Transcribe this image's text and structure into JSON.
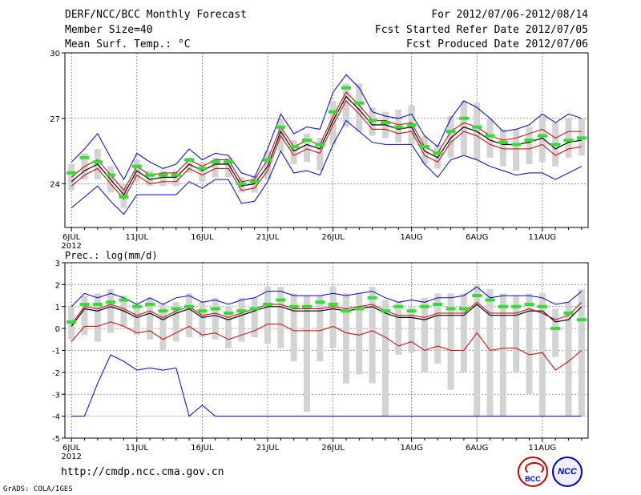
{
  "header": {
    "title": "DERF/NCC/BCC Monthly Forecast",
    "member_size": "Member Size=40",
    "variable": "Mean Surf. Temp.: °C",
    "period": "For 2012/07/06-2012/08/14",
    "fcst_started": "Fcst Started Refer Date 2012/07/05",
    "fcst_produced": "Fcst Produced Date 2012/07/06"
  },
  "footer": {
    "url": "http://cmdp.ncc.cma.gov.cn",
    "grads": "GrADS: COLA/IGES",
    "logo_left_text": "BCC",
    "logo_right_text": "NCC"
  },
  "colors": {
    "mean": "#000000",
    "spread": "#cc0000",
    "envelope": "#0000cc",
    "box": "#d3d3d3",
    "obs": "#33dd33"
  },
  "chart_data": [
    {
      "type": "line",
      "title": "Mean Surf. Temp.: °C",
      "x_tick_labels": [
        "6JUL",
        "11JUL",
        "16JUL",
        "21JUL",
        "26JUL",
        "1AUG",
        "6AUG",
        "11AUG"
      ],
      "x_tick_days": [
        0,
        5,
        10,
        15,
        20,
        26,
        31,
        36
      ],
      "year_label": "2012",
      "ylim": [
        22,
        30
      ],
      "yticks": [
        24,
        27,
        30
      ],
      "days": 40,
      "series": [
        {
          "name": "mean",
          "values": [
            24.1,
            24.6,
            24.9,
            24.2,
            23.5,
            24.6,
            24.2,
            24.3,
            24.3,
            24.9,
            24.6,
            24.9,
            24.9,
            23.9,
            24.0,
            24.8,
            26.4,
            25.5,
            25.8,
            25.6,
            26.9,
            28.0,
            27.4,
            26.7,
            26.7,
            26.5,
            26.6,
            25.5,
            25.2,
            26.1,
            26.6,
            26.4,
            26.0,
            25.8,
            25.8,
            25.9,
            26.1,
            25.6,
            25.9,
            26.0
          ]
        },
        {
          "name": "upper",
          "values": [
            24.3,
            24.8,
            25.1,
            24.4,
            23.7,
            24.8,
            24.4,
            24.5,
            24.5,
            25.1,
            24.8,
            25.1,
            25.1,
            24.1,
            24.2,
            25.1,
            26.6,
            25.7,
            26.0,
            25.8,
            27.1,
            28.2,
            27.6,
            26.9,
            26.9,
            26.7,
            26.8,
            25.7,
            25.4,
            26.4,
            26.8,
            26.6,
            26.2,
            26.0,
            26.1,
            26.3,
            26.5,
            26.1,
            26.4,
            26.4
          ]
        },
        {
          "name": "lower",
          "values": [
            23.9,
            24.4,
            24.7,
            24.0,
            23.3,
            24.4,
            24.0,
            24.1,
            24.1,
            24.7,
            24.4,
            24.7,
            24.7,
            23.7,
            23.8,
            24.6,
            26.2,
            25.3,
            25.6,
            25.4,
            26.7,
            27.8,
            27.2,
            26.5,
            26.5,
            26.3,
            26.4,
            25.3,
            25.0,
            25.9,
            26.4,
            26.2,
            25.8,
            25.6,
            25.6,
            25.6,
            25.8,
            25.3,
            25.6,
            25.7
          ]
        },
        {
          "name": "max",
          "values": [
            25.0,
            25.6,
            26.3,
            25.2,
            24.2,
            25.4,
            25.0,
            24.7,
            24.9,
            25.6,
            25.1,
            25.4,
            25.3,
            24.5,
            24.3,
            25.6,
            27.2,
            26.3,
            26.6,
            26.5,
            28.2,
            29.0,
            28.4,
            27.3,
            27.1,
            27.0,
            27.2,
            26.2,
            25.7,
            27.0,
            27.8,
            27.5,
            27.0,
            26.4,
            26.5,
            26.7,
            27.2,
            26.8,
            27.2,
            27.0
          ]
        },
        {
          "name": "min",
          "values": [
            22.9,
            23.4,
            23.9,
            23.2,
            22.6,
            23.5,
            23.5,
            23.5,
            23.5,
            24.1,
            23.8,
            24.2,
            24.2,
            23.1,
            23.2,
            24.1,
            25.5,
            24.5,
            24.6,
            24.4,
            25.8,
            26.9,
            26.4,
            25.9,
            25.8,
            25.8,
            25.8,
            24.9,
            24.3,
            25.1,
            25.3,
            25.1,
            24.8,
            24.6,
            24.4,
            24.5,
            24.5,
            24.2,
            24.5,
            24.8
          ]
        }
      ],
      "boxes": [
        {
          "low": 23.7,
          "high": 24.9
        },
        {
          "low": 24.2,
          "high": 25.4
        },
        {
          "low": 24.2,
          "high": 25.6
        },
        {
          "low": 23.6,
          "high": 24.8
        },
        {
          "low": 22.9,
          "high": 24.0
        },
        {
          "low": 24.1,
          "high": 25.1
        },
        {
          "low": 23.9,
          "high": 24.6
        },
        {
          "low": 23.9,
          "high": 24.6
        },
        {
          "low": 23.9,
          "high": 24.6
        },
        {
          "low": 24.5,
          "high": 25.2
        },
        {
          "low": 24.1,
          "high": 25.0
        },
        {
          "low": 24.3,
          "high": 25.2
        },
        {
          "low": 24.3,
          "high": 25.2
        },
        {
          "low": 23.6,
          "high": 24.3
        },
        {
          "low": 23.6,
          "high": 24.4
        },
        {
          "low": 24.2,
          "high": 25.5
        },
        {
          "low": 25.5,
          "high": 27.0
        },
        {
          "low": 24.9,
          "high": 26.0
        },
        {
          "low": 25.0,
          "high": 26.3
        },
        {
          "low": 24.6,
          "high": 26.1
        },
        {
          "low": 25.8,
          "high": 27.8
        },
        {
          "low": 26.6,
          "high": 28.6
        },
        {
          "low": 26.4,
          "high": 28.6
        },
        {
          "low": 26.2,
          "high": 27.5
        },
        {
          "low": 26.1,
          "high": 27.3
        },
        {
          "low": 25.9,
          "high": 27.4
        },
        {
          "low": 25.8,
          "high": 27.6
        },
        {
          "low": 24.9,
          "high": 26.2
        },
        {
          "low": 24.7,
          "high": 25.8
        },
        {
          "low": 25.2,
          "high": 27.1
        },
        {
          "low": 25.3,
          "high": 27.8
        },
        {
          "low": 25.1,
          "high": 27.7
        },
        {
          "low": 25.2,
          "high": 27.0
        },
        {
          "low": 24.8,
          "high": 26.5
        },
        {
          "low": 24.6,
          "high": 26.5
        },
        {
          "low": 24.9,
          "high": 26.6
        },
        {
          "low": 25.0,
          "high": 27.1
        },
        {
          "low": 24.8,
          "high": 26.8
        },
        {
          "low": 25.2,
          "high": 27.0
        },
        {
          "low": 25.3,
          "high": 27.0
        }
      ],
      "observed": [
        24.5,
        25.2,
        25.0,
        24.4,
        23.4,
        24.8,
        24.4,
        24.4,
        24.4,
        25.1,
        24.7,
        25.0,
        25.0,
        24.0,
        24.1,
        25.1,
        26.6,
        25.7,
        26.0,
        25.8,
        27.3,
        28.4,
        27.7,
        26.9,
        26.8,
        26.6,
        26.7,
        25.7,
        25.4,
        26.4,
        27.0,
        26.6,
        26.2,
        25.9,
        25.8,
        26.0,
        26.2,
        25.8,
        26.0,
        26.1
      ]
    },
    {
      "type": "line",
      "title": "Prec.: log(mm/d)",
      "x_tick_labels": [
        "6JUL",
        "11JUL",
        "16JUL",
        "21JUL",
        "26JUL",
        "1AUG",
        "6AUG",
        "11AUG"
      ],
      "x_tick_days": [
        0,
        5,
        10,
        15,
        20,
        26,
        31,
        36
      ],
      "year_label": "2012",
      "ylim": [
        -5,
        3
      ],
      "yticks": [
        -5,
        -4,
        -3,
        -2,
        -1,
        0,
        1,
        2,
        3
      ],
      "days": 40,
      "series": [
        {
          "name": "mean",
          "values": [
            0.1,
            0.9,
            0.8,
            1.0,
            0.8,
            0.5,
            0.7,
            0.4,
            0.7,
            0.9,
            0.5,
            0.6,
            0.4,
            0.6,
            0.8,
            1.0,
            1.0,
            0.8,
            0.8,
            0.8,
            0.9,
            0.8,
            0.9,
            1.0,
            0.7,
            0.5,
            0.5,
            0.4,
            0.6,
            0.6,
            0.6,
            1.1,
            0.6,
            0.6,
            0.6,
            0.8,
            0.8,
            0.3,
            0.4,
            1.0
          ]
        },
        {
          "name": "upper",
          "values": [
            0.2,
            1.0,
            0.9,
            1.1,
            0.9,
            0.6,
            0.8,
            0.5,
            0.8,
            1.0,
            0.6,
            0.7,
            0.5,
            0.7,
            0.9,
            1.1,
            1.1,
            0.9,
            0.9,
            0.9,
            1.0,
            0.9,
            1.0,
            1.1,
            0.8,
            0.6,
            0.6,
            0.5,
            0.7,
            0.7,
            0.7,
            1.2,
            0.7,
            0.7,
            0.7,
            0.9,
            0.7,
            0.4,
            0.6,
            1.2
          ]
        },
        {
          "name": "lower",
          "values": [
            -0.6,
            0.1,
            0.1,
            0.3,
            0.1,
            -0.2,
            -0.1,
            -0.5,
            -0.2,
            0.1,
            -0.3,
            -0.2,
            -0.5,
            -0.3,
            -0.1,
            0.2,
            0.2,
            -0.1,
            -0.1,
            -0.1,
            0.1,
            -0.2,
            -0.3,
            -0.1,
            -0.4,
            -0.8,
            -0.6,
            -1.0,
            -0.8,
            -1.0,
            -1.0,
            -0.2,
            -1.0,
            -0.9,
            -0.9,
            -1.2,
            -1.1,
            -1.9,
            -1.5,
            -1.0
          ]
        },
        {
          "name": "max",
          "values": [
            1.0,
            1.6,
            1.4,
            1.6,
            1.4,
            1.1,
            1.4,
            1.1,
            1.4,
            1.5,
            1.2,
            1.3,
            1.1,
            1.3,
            1.4,
            1.7,
            1.7,
            1.5,
            1.5,
            1.5,
            1.6,
            1.5,
            1.6,
            1.7,
            1.4,
            1.2,
            1.3,
            1.2,
            1.4,
            1.4,
            1.5,
            1.9,
            1.4,
            1.5,
            1.5,
            1.5,
            1.4,
            1.1,
            1.2,
            1.7
          ]
        },
        {
          "name": "min",
          "values": [
            -4.0,
            -4.0,
            -2.5,
            -1.2,
            -1.5,
            -1.9,
            -1.8,
            -1.9,
            -1.8,
            -4.0,
            -3.5,
            -4.0,
            -4.0,
            -4.0,
            -4.0,
            -4.0,
            -4.0,
            -4.0,
            -4.0,
            -4.0,
            -4.0,
            -4.0,
            -4.0,
            -4.0,
            -4.0,
            -4.0,
            -4.0,
            -4.0,
            -4.0,
            -4.0,
            -4.0,
            -4.0,
            -4.0,
            -4.0,
            -4.0,
            -4.0,
            -4.0,
            -4.0,
            -4.0,
            -4.0
          ]
        }
      ],
      "boxes": [
        {
          "low": -0.5,
          "high": 1.0
        },
        {
          "low": -0.3,
          "high": 1.5
        },
        {
          "low": -0.6,
          "high": 1.6
        },
        {
          "low": -0.2,
          "high": 1.8
        },
        {
          "low": 0.1,
          "high": 1.5
        },
        {
          "low": -0.3,
          "high": 1.1
        },
        {
          "low": -0.5,
          "high": 1.4
        },
        {
          "low": -1.0,
          "high": 1.1
        },
        {
          "low": -0.6,
          "high": 1.2
        },
        {
          "low": -0.4,
          "high": 1.6
        },
        {
          "low": -0.4,
          "high": 1.2
        },
        {
          "low": -0.5,
          "high": 1.4
        },
        {
          "low": -0.9,
          "high": 1.0
        },
        {
          "low": -0.6,
          "high": 1.4
        },
        {
          "low": -0.4,
          "high": 1.4
        },
        {
          "low": -0.7,
          "high": 1.9
        },
        {
          "low": -0.9,
          "high": 1.9
        },
        {
          "low": -1.5,
          "high": 1.6
        },
        {
          "low": -3.8,
          "high": 1.5
        },
        {
          "low": -1.5,
          "high": 1.5
        },
        {
          "low": -0.9,
          "high": 1.9
        },
        {
          "low": -2.5,
          "high": 1.6
        },
        {
          "low": -2.1,
          "high": 1.6
        },
        {
          "low": -2.5,
          "high": 1.9
        },
        {
          "low": -4.0,
          "high": 1.3
        },
        {
          "low": -1.2,
          "high": 1.2
        },
        {
          "low": -1.1,
          "high": 1.0
        },
        {
          "low": -2.0,
          "high": 1.4
        },
        {
          "low": -1.6,
          "high": 1.6
        },
        {
          "low": -2.8,
          "high": 1.6
        },
        {
          "low": -2.0,
          "high": 1.6
        },
        {
          "low": -4.0,
          "high": 2.0
        },
        {
          "low": -4.0,
          "high": 1.8
        },
        {
          "low": -4.0,
          "high": 1.6
        },
        {
          "low": -2.0,
          "high": 1.5
        },
        {
          "low": -3.0,
          "high": 1.6
        },
        {
          "low": -4.0,
          "high": 1.6
        },
        {
          "low": -1.3,
          "high": 0.9
        },
        {
          "low": -4.0,
          "high": 1.2
        },
        {
          "low": -4.0,
          "high": 1.8
        }
      ],
      "observed": [
        0.3,
        1.1,
        1.1,
        1.2,
        1.3,
        1.0,
        1.1,
        0.8,
        0.9,
        1.0,
        0.8,
        0.9,
        0.7,
        0.8,
        0.9,
        1.1,
        1.3,
        1.0,
        1.0,
        1.2,
        1.1,
        0.8,
        0.9,
        1.4,
        0.8,
        1.0,
        0.8,
        1.0,
        1.1,
        0.9,
        0.9,
        1.5,
        1.3,
        1.0,
        1.0,
        1.1,
        1.0,
        0.0,
        0.7,
        0.4
      ]
    }
  ]
}
